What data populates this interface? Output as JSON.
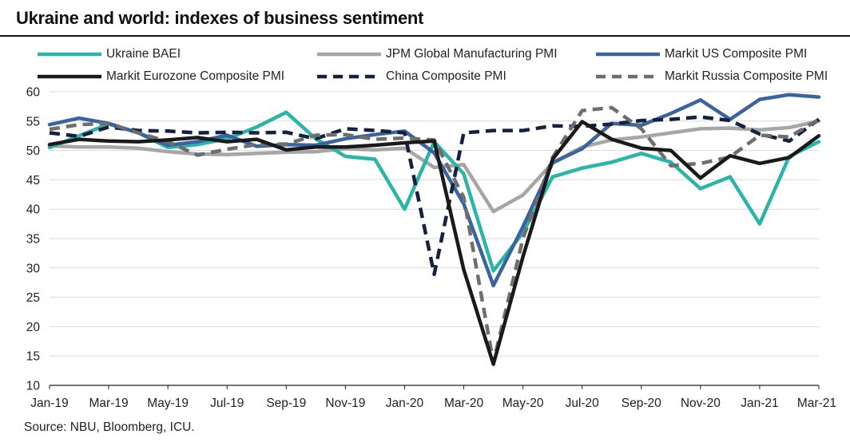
{
  "title": "Ukraine and world: indexes of business sentiment",
  "source": "Source: NBU, Bloomberg, ICU.",
  "chart_data": {
    "type": "line",
    "title": "Ukraine and world: indexes of business sentiment",
    "xlabel": "",
    "ylabel": "",
    "ylim": [
      10,
      60
    ],
    "yticks": [
      "10",
      "15",
      "20",
      "25",
      "30",
      "35",
      "40",
      "45",
      "50",
      "55",
      "60"
    ],
    "grid": true,
    "legend_position": "top",
    "x": [
      "Jan-19",
      "Feb-19",
      "Mar-19",
      "Apr-19",
      "May-19",
      "Jun-19",
      "Jul-19",
      "Aug-19",
      "Sep-19",
      "Oct-19",
      "Nov-19",
      "Dec-19",
      "Jan-20",
      "Feb-20",
      "Mar-20",
      "Apr-20",
      "May-20",
      "Jun-20",
      "Jul-20",
      "Aug-20",
      "Sep-20",
      "Oct-20",
      "Nov-20",
      "Dec-20",
      "Jan-21",
      "Feb-21",
      "Mar-21"
    ],
    "xtick_labels": [
      "Jan-19",
      "Mar-19",
      "May-19",
      "Jul-19",
      "Sep-19",
      "Nov-19",
      "Jan-20",
      "Mar-20",
      "May-20",
      "Jul-20",
      "Sep-20",
      "Nov-20",
      "Jan-21",
      "Mar-21"
    ],
    "series": [
      {
        "name": "Ukraine BAEI",
        "color": "#2ab5a8",
        "dash": "solid",
        "values": [
          50.5,
          52.5,
          54.5,
          53.0,
          50.5,
          51.0,
          52.0,
          54.0,
          56.5,
          52.0,
          49.0,
          48.5,
          40.0,
          51.5,
          46.0,
          29.5,
          36.0,
          45.5,
          47.0,
          48.0,
          49.5,
          48.0,
          43.5,
          45.5,
          37.5,
          49.0,
          51.5
        ]
      },
      {
        "name": "JPM Global Manufacturing PMI",
        "color": "#a6a6a6",
        "dash": "solid",
        "values": [
          50.8,
          50.6,
          50.6,
          50.4,
          49.8,
          49.4,
          49.3,
          49.5,
          49.7,
          49.8,
          50.3,
          50.1,
          50.4,
          47.1,
          47.6,
          39.6,
          42.4,
          47.9,
          50.6,
          51.8,
          52.3,
          53.0,
          53.7,
          53.8,
          53.5,
          53.9,
          55.0
        ]
      },
      {
        "name": "Markit US Composite PMI",
        "color": "#3a63a0",
        "dash": "solid",
        "values": [
          54.4,
          55.5,
          54.6,
          53.0,
          50.9,
          51.5,
          52.6,
          50.7,
          51.0,
          50.9,
          52.0,
          52.7,
          53.3,
          49.6,
          40.9,
          27.0,
          37.0,
          47.9,
          50.3,
          54.6,
          54.3,
          56.3,
          58.6,
          55.3,
          58.7,
          59.5,
          59.1
        ]
      },
      {
        "name": "Markit Eurozone Composite PMI",
        "color": "#1a1a1a",
        "dash": "solid",
        "values": [
          51.0,
          51.9,
          51.6,
          51.5,
          51.8,
          52.2,
          51.5,
          51.9,
          50.1,
          50.6,
          50.6,
          50.9,
          51.3,
          51.6,
          29.7,
          13.6,
          31.9,
          48.5,
          54.9,
          51.9,
          50.4,
          50.0,
          45.3,
          49.1,
          47.8,
          48.8,
          52.5
        ]
      },
      {
        "name": "China Composite PMI",
        "color": "#16213f",
        "dash": "dashed",
        "values": [
          53.0,
          52.4,
          54.0,
          53.4,
          53.3,
          53.0,
          53.1,
          53.0,
          53.1,
          52.0,
          53.7,
          53.4,
          53.0,
          28.9,
          53.0,
          53.4,
          53.4,
          54.2,
          54.1,
          54.5,
          55.1,
          55.3,
          55.7,
          55.1,
          52.8,
          51.6,
          55.3
        ]
      },
      {
        "name": "Markit Russia Composite PMI",
        "color": "#6e6e6e",
        "dash": "dashed",
        "values": [
          53.6,
          54.4,
          54.6,
          53.0,
          51.5,
          49.2,
          50.2,
          51.0,
          51.1,
          52.6,
          52.7,
          51.9,
          52.1,
          51.8,
          42.0,
          13.9,
          35.0,
          48.8,
          56.8,
          57.3,
          53.7,
          47.4,
          47.8,
          48.9,
          52.6,
          52.3,
          55.3
        ]
      }
    ]
  }
}
